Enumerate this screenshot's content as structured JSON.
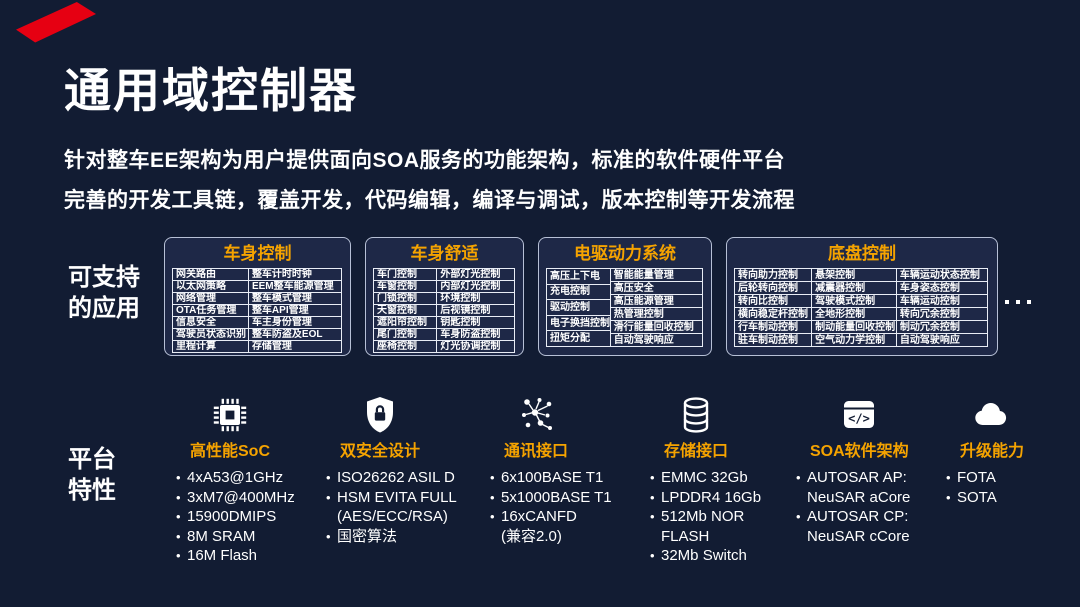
{
  "page": {
    "background_color": "#121c33",
    "accent_yellow": "#F5A300",
    "accent_red": "#E60012"
  },
  "header": {
    "title": "通用域控制器",
    "subtitle_lines": [
      "针对整车EE架构为用户提供面向SOA服务的功能架构，标准的软件硬件平台",
      "完善的开发工具链，覆盖开发，代码编辑，编译与调试，版本控制等开发流程"
    ]
  },
  "applications": {
    "section_label_lines": [
      "可支持",
      "的应用"
    ],
    "groups": [
      {
        "title": "车身控制",
        "columns": [
          [
            "网关路由",
            "以太网策略",
            "网络管理",
            "OTA任务管理",
            "信息安全",
            "驾驶员状态识别",
            "里程计算"
          ],
          [
            "整车计时时钟",
            "EEM整车能源管理",
            "整车模式管理",
            "整车API管理",
            "车主身份管理",
            "整车防盗及EOL",
            "存储管理"
          ]
        ]
      },
      {
        "title": "车身舒适",
        "columns": [
          [
            "车门控制",
            "车窗控制",
            "门锁控制",
            "天窗控制",
            "遮阳帘控制",
            "尾门控制",
            "座椅控制"
          ],
          [
            "外部灯光控制",
            "内部灯光控制",
            "环境控制",
            "后视镜控制",
            "钥匙控制",
            "车身防盗控制",
            "灯光协调控制"
          ]
        ]
      },
      {
        "title": "电驱动力系统",
        "columns": [
          [
            "高压上下电",
            "充电控制",
            "驱动控制",
            "电子换挡控制",
            "扭矩分配"
          ],
          [
            "智能能量管理",
            "高压安全",
            "高压能源管理",
            "热管理控制",
            "滑行能量回收控制",
            "自动驾驶响应"
          ]
        ]
      },
      {
        "title": "底盘控制",
        "columns": [
          [
            "转向助力控制",
            "后轮转向控制",
            "转向比控制",
            "横向稳定杆控制",
            "行车制动控制",
            "驻车制动控制"
          ],
          [
            "悬架控制",
            "减震器控制",
            "驾驶模式控制",
            "全地形控制",
            "制动能量回收控制",
            "空气动力学控制"
          ],
          [
            "车辆运动状态控制",
            "车身姿态控制",
            "车辆运动控制",
            "转向冗余控制",
            "制动冗余控制",
            "自动驾驶响应"
          ]
        ]
      }
    ]
  },
  "platform": {
    "section_label_lines": [
      "平台",
      "特性"
    ],
    "features": [
      {
        "icon": "chip-icon",
        "title": "高性能SoC",
        "items": [
          [
            "4xA53@1GHz"
          ],
          [
            "3xM7@400MHz"
          ],
          [
            "15900DMIPS"
          ],
          [
            "8M SRAM"
          ],
          [
            "16M Flash"
          ]
        ]
      },
      {
        "icon": "shield-lock-icon",
        "title": "双安全设计",
        "items": [
          [
            "ISO26262 ASIL D"
          ],
          [
            "HSM EVITA FULL",
            "(AES/ECC/RSA)"
          ],
          [
            "国密算法"
          ]
        ]
      },
      {
        "icon": "network-nodes-icon",
        "title": "通讯接口",
        "items": [
          [
            "6x100BASE T1"
          ],
          [
            "5x1000BASE T1"
          ],
          [
            "16xCANFD",
            "(兼容2.0)"
          ]
        ]
      },
      {
        "icon": "database-icon",
        "title": "存储接口",
        "items": [
          [
            "EMMC 32Gb"
          ],
          [
            "LPDDR4 16Gb"
          ],
          [
            "512Mb NOR",
            "FLASH"
          ],
          [
            "32Mb Switch"
          ]
        ]
      },
      {
        "icon": "code-window-icon",
        "title": "SOA软件架构",
        "items": [
          [
            "AUTOSAR AP:",
            "NeuSAR aCore"
          ],
          [
            "AUTOSAR CP:",
            "NeuSAR cCore"
          ]
        ]
      },
      {
        "icon": "cloud-icon",
        "title": "升级能力",
        "items": [
          [
            "FOTA"
          ],
          [
            "SOTA"
          ]
        ]
      }
    ]
  }
}
